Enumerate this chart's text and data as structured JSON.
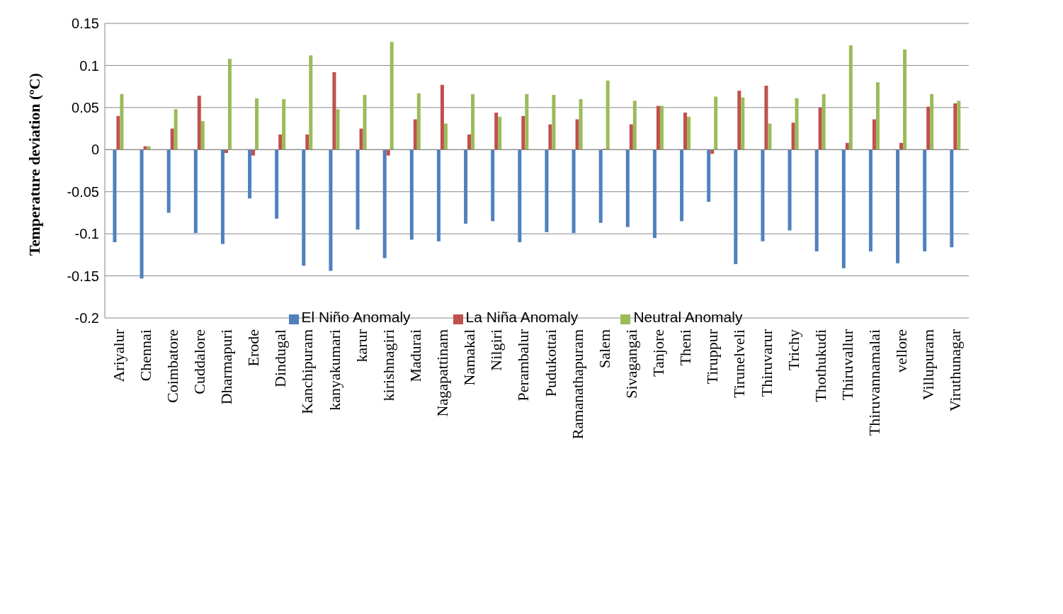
{
  "chart_data": {
    "type": "bar",
    "ylabel": "Temperature deviation  (ºC)",
    "categories": [
      "Ariyalur",
      "Chennai",
      "Coimbatore",
      "Cuddalore",
      "Dharmapuri",
      "Erode",
      "Dindugal",
      "Kanchipuram",
      "kanyakumari",
      "karur",
      "kirishnagiri",
      "Madurai",
      "Nagapattinam",
      "Namakal",
      "Nilgiri",
      "Perambalur",
      "Pudukottai",
      "Ramanathapuram",
      "Salem",
      "Sivagangai",
      "Tanjore",
      "Theni",
      "Tiruppur",
      "Tirunelveli",
      "Thiruvarur",
      "Trichy",
      "Thothukudi",
      "Thiruvallur",
      "Thiruvannamalai",
      "vellore",
      "Villupuram",
      "Viruthunagar"
    ],
    "series": [
      {
        "name": "El Niño Anomaly",
        "color": "#4f81bd",
        "values": [
          -0.11,
          -0.153,
          -0.075,
          -0.099,
          -0.112,
          -0.058,
          -0.082,
          -0.138,
          -0.144,
          -0.095,
          -0.129,
          -0.107,
          -0.109,
          -0.088,
          -0.085,
          -0.11,
          -0.098,
          -0.099,
          -0.087,
          -0.092,
          -0.105,
          -0.085,
          -0.062,
          -0.136,
          -0.109,
          -0.096,
          -0.121,
          -0.141,
          -0.121,
          -0.135,
          -0.121,
          -0.116
        ]
      },
      {
        "name": "La Niña Anomaly",
        "color": "#c0504d",
        "values": [
          0.04,
          0.004,
          0.025,
          0.064,
          -0.004,
          -0.007,
          0.018,
          0.018,
          0.092,
          0.025,
          -0.007,
          0.036,
          0.077,
          0.018,
          0.044,
          0.04,
          0.03,
          0.036,
          0.001,
          0.03,
          0.052,
          0.044,
          -0.005,
          0.07,
          0.076,
          0.032,
          0.05,
          0.008,
          0.036,
          0.008,
          0.051,
          0.055
        ]
      },
      {
        "name": "Neutral Anomaly",
        "color": "#9bbb59",
        "values": [
          0.066,
          0.004,
          0.048,
          0.034,
          0.108,
          0.061,
          0.06,
          0.112,
          0.048,
          0.065,
          0.128,
          0.067,
          0.031,
          0.066,
          0.039,
          0.066,
          0.065,
          0.06,
          0.082,
          0.058,
          0.052,
          0.039,
          0.063,
          0.062,
          0.031,
          0.061,
          0.066,
          0.124,
          0.08,
          0.119,
          0.066,
          0.058
        ]
      }
    ],
    "ylim": [
      -0.2,
      0.15
    ],
    "yticks": [
      -0.2,
      -0.15,
      -0.1,
      -0.05,
      0,
      0.05,
      0.1,
      0.15
    ],
    "grid": "y",
    "legend": "bottom"
  }
}
